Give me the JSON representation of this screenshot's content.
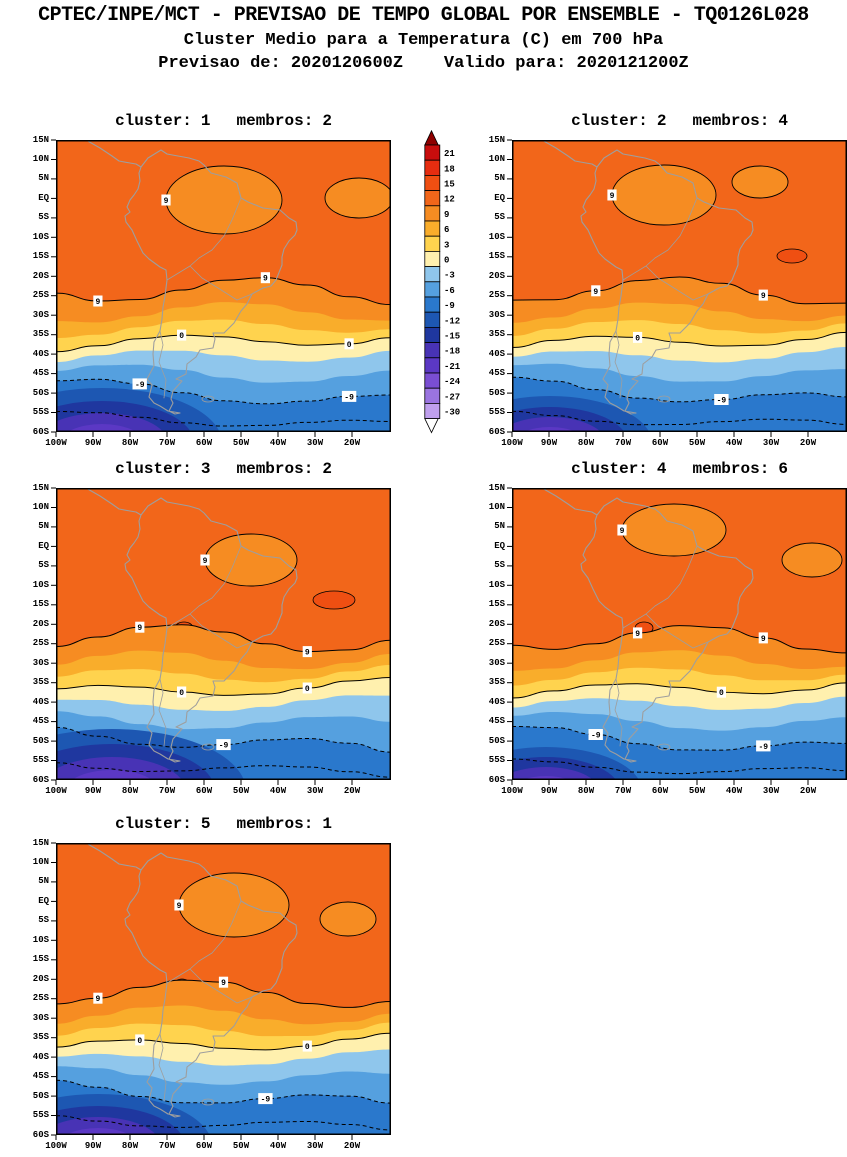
{
  "header": {
    "line1": "CPTEC/INPE/MCT - PREVISAO DE TEMPO GLOBAL POR ENSEMBLE - TQ0126L028",
    "line2": "Cluster Medio para a Temperatura (C) em 700 hPa",
    "line3": "Previsao de: 2020120600Z    Valido para: 2020121200Z"
  },
  "panels": [
    {
      "cluster_label": "cluster:",
      "cluster": "1",
      "membros_label": "membros:",
      "membros": "2"
    },
    {
      "cluster_label": "cluster:",
      "cluster": "2",
      "membros_label": "membros:",
      "membros": "4"
    },
    {
      "cluster_label": "cluster:",
      "cluster": "3",
      "membros_label": "membros:",
      "membros": "2"
    },
    {
      "cluster_label": "cluster:",
      "cluster": "4",
      "membros_label": "membros:",
      "membros": "6"
    },
    {
      "cluster_label": "cluster:",
      "cluster": "5",
      "membros_label": "membros:",
      "membros": "1"
    }
  ],
  "axes": {
    "lat_ticks": [
      "15N",
      "10N",
      "5N",
      "EQ",
      "5S",
      "10S",
      "15S",
      "20S",
      "25S",
      "30S",
      "35S",
      "40S",
      "45S",
      "50S",
      "55S",
      "60S"
    ],
    "lon_ticks": [
      "100W",
      "90W",
      "80W",
      "70W",
      "60W",
      "50W",
      "40W",
      "30W",
      "20W"
    ]
  },
  "legend": {
    "values": [
      21,
      18,
      15,
      12,
      9,
      6,
      3,
      0,
      -3,
      -6,
      -9,
      -12,
      -15,
      -18,
      -21,
      -24,
      -27,
      -30
    ],
    "colors": [
      "#C80D0D",
      "#E62D10",
      "#EF4F12",
      "#F2661A",
      "#F68C22",
      "#F9AD2B",
      "#FFD34E",
      "#FFF0AE",
      "#8FC6EC",
      "#55A0DF",
      "#2A78CC",
      "#1D57B2",
      "#1F379F",
      "#4833B5",
      "#5B38C4",
      "#7A4ED2",
      "#9A74E0",
      "#BF9FED"
    ],
    "above_color": "#8E0000",
    "below_color": "#FFFFFF"
  },
  "contour_labels": {
    "warm": "9",
    "zero": "0",
    "cold": "-9"
  },
  "map": {
    "coast_color": "#9E9E9E"
  },
  "chart_data": {
    "type": "heatmap",
    "subtype": "filled-contour ensemble cluster temperature maps over South America",
    "title": "Cluster Medio para a Temperatura (C) em 700 hPa",
    "source": "CPTEC/INPE/MCT - PREVISAO DE TEMPO GLOBAL POR ENSEMBLE - TQ0126L028",
    "init_time": "2020120600Z",
    "valid_time": "2020121200Z",
    "region": {
      "lon_ticks": [
        "100W",
        "90W",
        "80W",
        "70W",
        "60W",
        "50W",
        "40W",
        "30W",
        "20W"
      ],
      "lat_range": [
        "15N",
        "60S"
      ]
    },
    "shading_interval_c": 3,
    "labeled_contours_c": [
      9,
      0,
      -9
    ],
    "colorbar_levels_c": [
      21,
      18,
      15,
      12,
      9,
      6,
      3,
      0,
      -3,
      -6,
      -9,
      -12,
      -15,
      -18,
      -21,
      -24,
      -27,
      -30
    ],
    "panels": [
      {
        "cluster": 1,
        "membros": 2
      },
      {
        "cluster": 2,
        "membros": 4
      },
      {
        "cluster": 3,
        "membros": 2
      },
      {
        "cluster": 4,
        "membros": 6
      },
      {
        "cluster": 5,
        "membros": 1
      }
    ],
    "field_summary": "9-15 C shading covers tropical South America with local 12-15 C hot spots; the 0 C contour lies near 33-38S; the dashed -9 C contour lies near 45-55S; coldest shading (-15 to -24 C) sits in the far southwest corner near 60S."
  }
}
